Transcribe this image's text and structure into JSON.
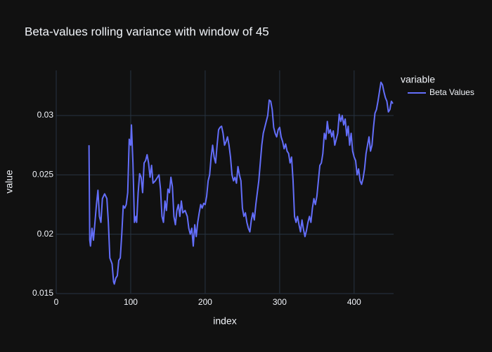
{
  "chart_data": {
    "type": "line",
    "title": "Beta-values rolling variance with window of 45",
    "x_label": "index",
    "y_label": "value",
    "legend_title": "variable",
    "x": [
      44,
      45,
      46,
      48,
      50,
      52,
      54,
      56,
      58,
      60,
      62,
      65,
      68,
      70,
      72,
      75,
      77,
      78,
      80,
      82,
      84,
      86,
      88,
      90,
      92,
      94,
      96,
      98,
      100,
      101,
      103,
      105,
      107,
      108,
      110,
      112,
      114,
      116,
      118,
      120,
      122,
      124,
      126,
      128,
      130,
      133,
      136,
      138,
      140,
      142,
      144,
      146,
      148,
      150,
      152,
      154,
      156,
      158,
      160,
      162,
      164,
      166,
      168,
      170,
      173,
      176,
      178,
      180,
      182,
      184,
      186,
      188,
      190,
      192,
      194,
      196,
      198,
      200,
      202,
      204,
      206,
      208,
      210,
      212,
      214,
      216,
      218,
      220,
      222,
      224,
      226,
      228,
      230,
      232,
      234,
      236,
      238,
      240,
      242,
      244,
      246,
      248,
      250,
      252,
      254,
      256,
      258,
      260,
      262,
      264,
      266,
      268,
      270,
      272,
      274,
      276,
      278,
      280,
      282,
      284,
      286,
      288,
      290,
      292,
      294,
      296,
      298,
      300,
      302,
      304,
      306,
      308,
      310,
      312,
      314,
      316,
      318,
      320,
      322,
      324,
      326,
      328,
      330,
      332,
      334,
      336,
      338,
      340,
      342,
      344,
      346,
      348,
      350,
      352,
      354,
      356,
      358,
      360,
      362,
      364,
      366,
      368,
      370,
      372,
      374,
      376,
      378,
      380,
      382,
      384,
      386,
      388,
      390,
      392,
      394,
      396,
      398,
      400,
      402,
      404,
      406,
      408,
      410,
      412,
      414,
      416,
      418,
      420,
      422,
      424,
      426,
      428,
      430,
      432,
      434,
      436,
      438,
      440,
      442,
      444,
      446,
      448,
      450,
      452
    ],
    "series": [
      {
        "name": "Beta Values",
        "color": "#636efa",
        "values": [
          0.0275,
          0.0195,
          0.019,
          0.0205,
          0.0195,
          0.021,
          0.0225,
          0.0237,
          0.0215,
          0.021,
          0.023,
          0.0234,
          0.023,
          0.021,
          0.018,
          0.0175,
          0.016,
          0.0158,
          0.0163,
          0.0165,
          0.0178,
          0.018,
          0.02,
          0.0224,
          0.0222,
          0.0225,
          0.0235,
          0.028,
          0.0275,
          0.0292,
          0.026,
          0.021,
          0.0215,
          0.021,
          0.0235,
          0.0251,
          0.0248,
          0.0235,
          0.026,
          0.0262,
          0.0267,
          0.026,
          0.0248,
          0.0258,
          0.0243,
          0.0245,
          0.0248,
          0.025,
          0.0238,
          0.0215,
          0.021,
          0.0228,
          0.022,
          0.0238,
          0.0235,
          0.0248,
          0.024,
          0.0215,
          0.0208,
          0.022,
          0.0225,
          0.0215,
          0.0228,
          0.0218,
          0.022,
          0.0215,
          0.0205,
          0.02,
          0.0205,
          0.019,
          0.0208,
          0.0198,
          0.021,
          0.0218,
          0.0225,
          0.0222,
          0.0226,
          0.0225,
          0.0232,
          0.0245,
          0.025,
          0.0265,
          0.0275,
          0.0265,
          0.026,
          0.0275,
          0.0288,
          0.029,
          0.0291,
          0.0285,
          0.0275,
          0.0278,
          0.0282,
          0.0275,
          0.0265,
          0.025,
          0.0245,
          0.0248,
          0.0243,
          0.0257,
          0.025,
          0.0245,
          0.0222,
          0.0215,
          0.0218,
          0.021,
          0.0205,
          0.0202,
          0.0212,
          0.0218,
          0.0212,
          0.0225,
          0.0235,
          0.0245,
          0.026,
          0.0275,
          0.0285,
          0.029,
          0.0295,
          0.03,
          0.0313,
          0.0312,
          0.0305,
          0.029,
          0.0285,
          0.0282,
          0.0288,
          0.029,
          0.0282,
          0.0278,
          0.0272,
          0.0276,
          0.027,
          0.0268,
          0.026,
          0.0265,
          0.0245,
          0.0215,
          0.021,
          0.0215,
          0.0208,
          0.0202,
          0.0212,
          0.0204,
          0.0198,
          0.0203,
          0.021,
          0.0215,
          0.021,
          0.0222,
          0.023,
          0.0225,
          0.0232,
          0.0245,
          0.0258,
          0.026,
          0.0268,
          0.0285,
          0.028,
          0.0295,
          0.0285,
          0.0288,
          0.0282,
          0.0287,
          0.0275,
          0.028,
          0.0285,
          0.0301,
          0.0295,
          0.03,
          0.0292,
          0.0297,
          0.0283,
          0.0291,
          0.0275,
          0.0285,
          0.027,
          0.0265,
          0.0262,
          0.025,
          0.0255,
          0.0245,
          0.0242,
          0.0247,
          0.0255,
          0.0268,
          0.0275,
          0.0282,
          0.027,
          0.0275,
          0.029,
          0.0302,
          0.0305,
          0.0312,
          0.032,
          0.0328,
          0.0326,
          0.032,
          0.0315,
          0.0312,
          0.0303,
          0.0305,
          0.0312,
          0.031
        ]
      }
    ],
    "xlim": [
      0,
      453
    ],
    "xticks": [
      0,
      100,
      200,
      300,
      400
    ],
    "ylim": [
      0.015,
      0.0338
    ],
    "yticks": [
      0.015,
      0.02,
      0.025,
      0.03
    ],
    "grid": true
  }
}
